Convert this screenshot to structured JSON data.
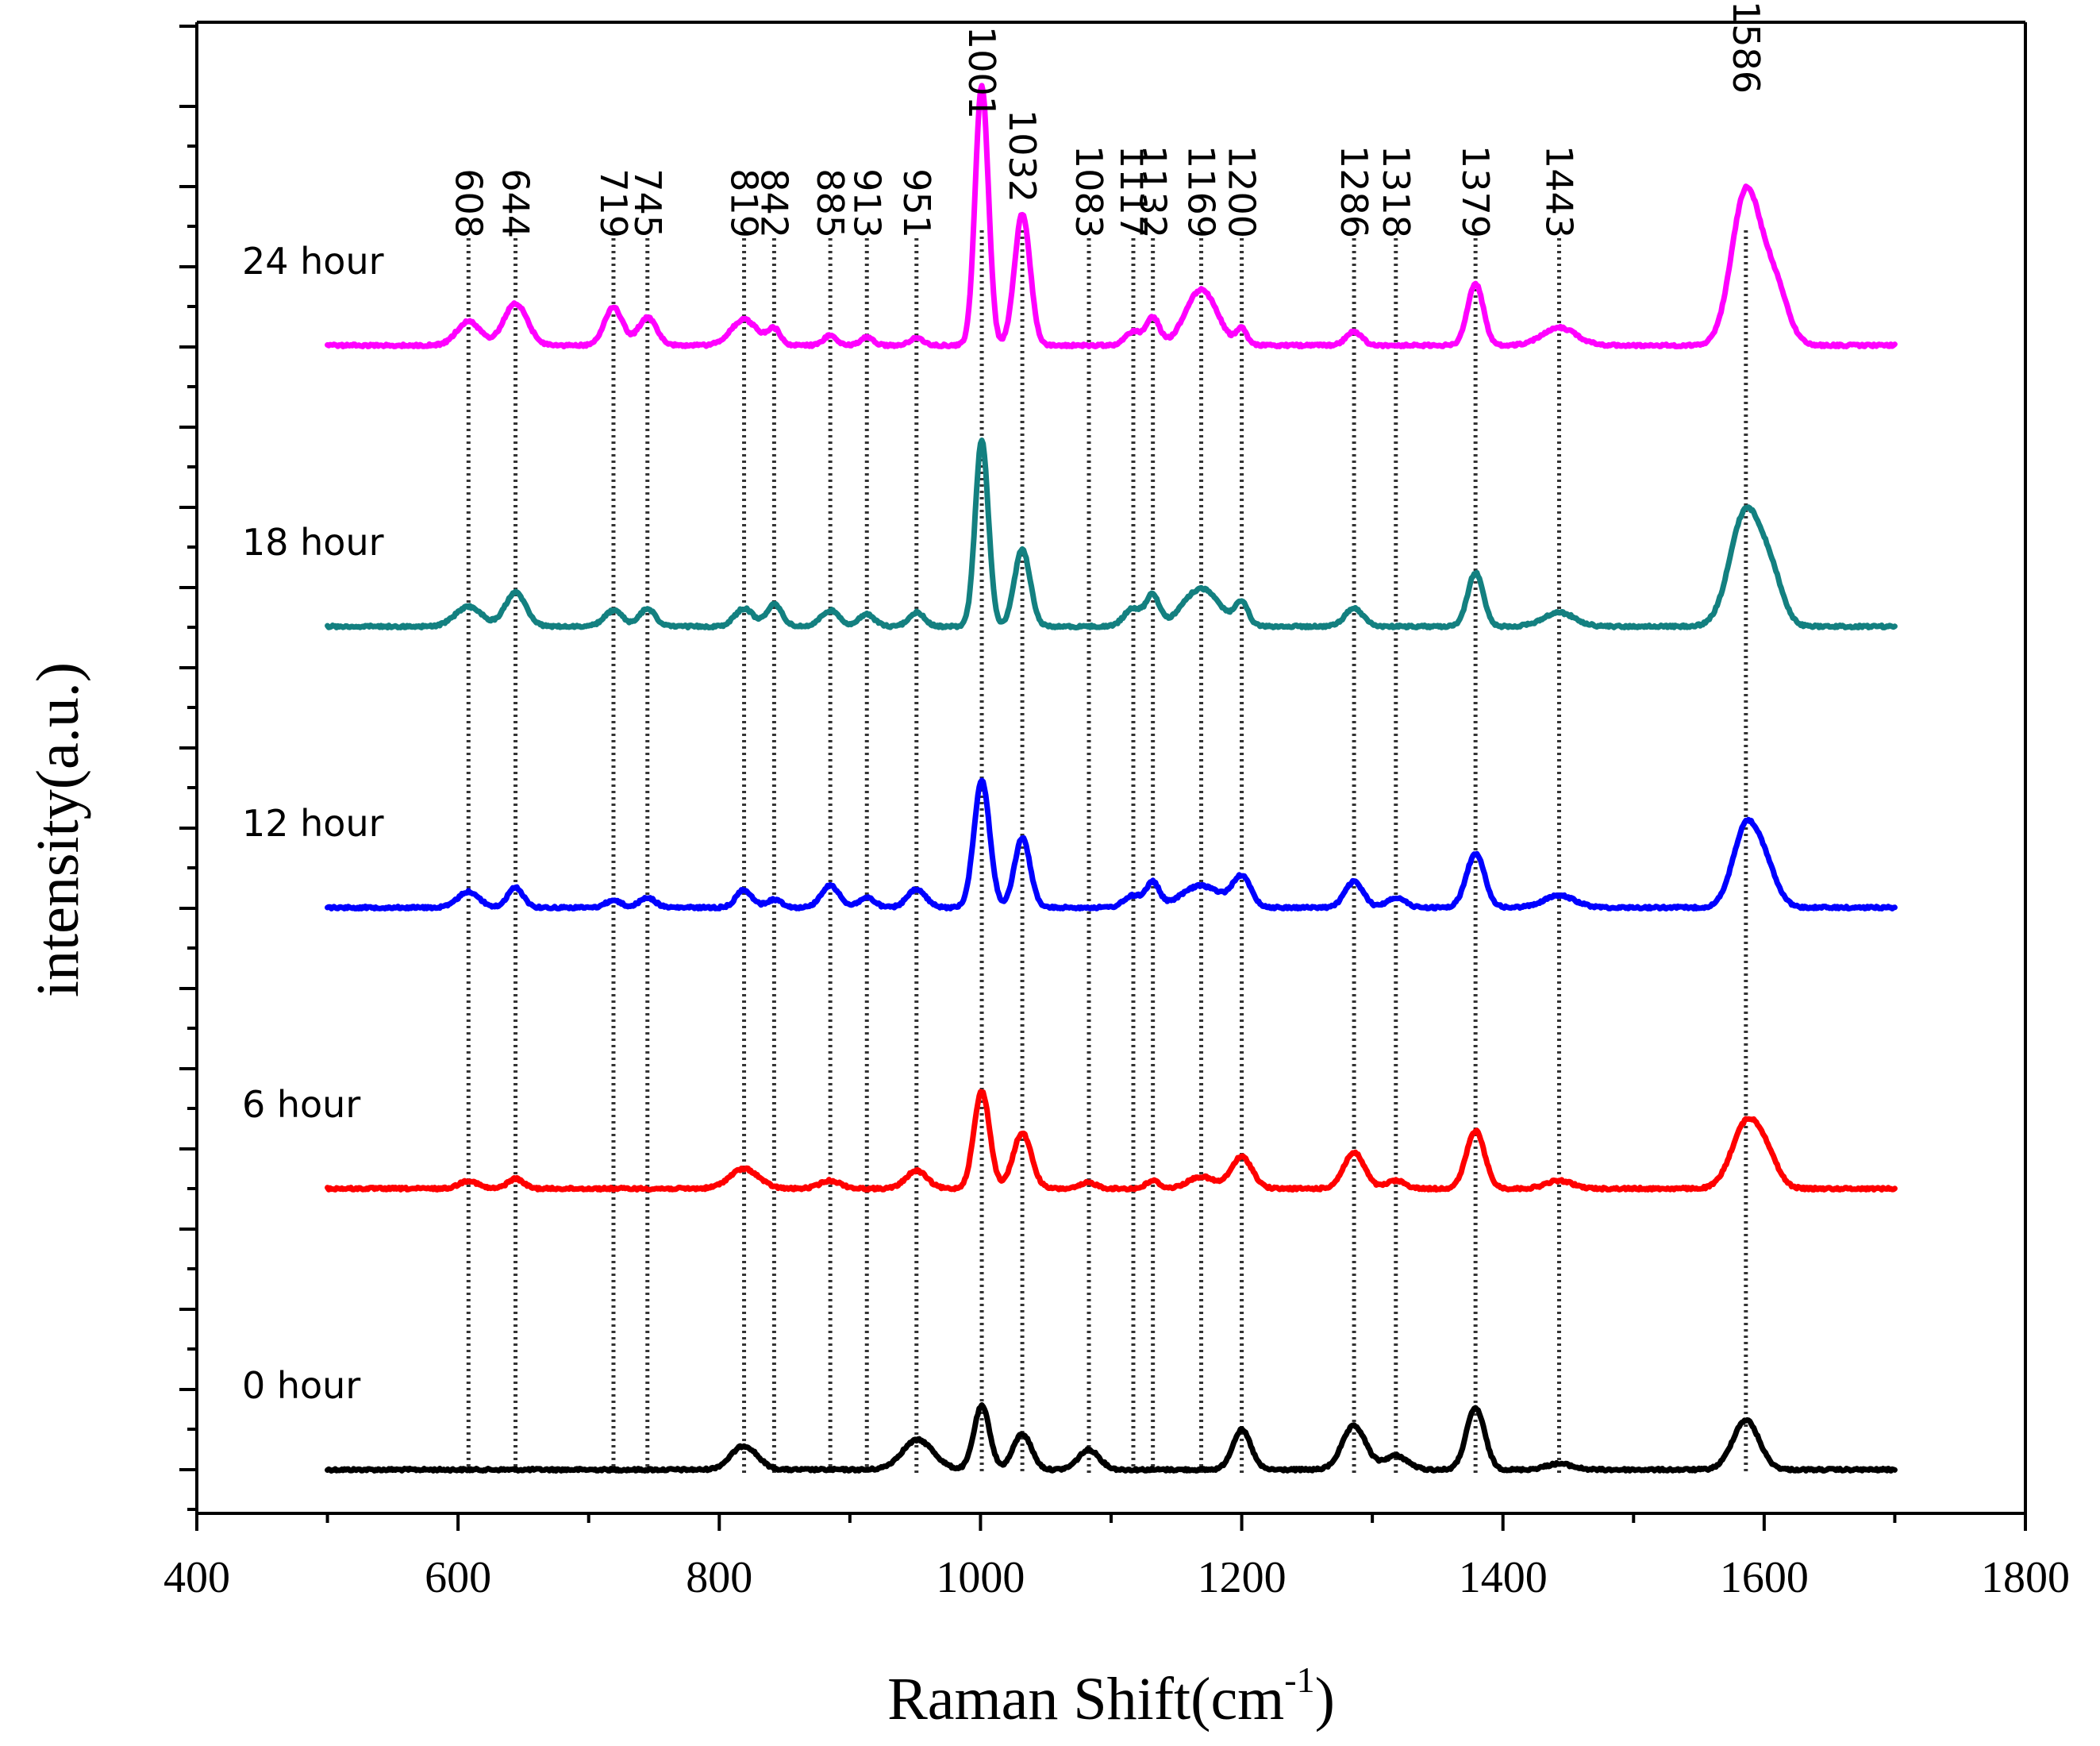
{
  "chart_data": {
    "type": "line",
    "title": "",
    "xlabel": "Raman Shift(cm",
    "xlabel_sup": "-1",
    "xlabel_close": ")",
    "ylabel": "intensity(a.u.)",
    "xlim": [
      400,
      1800
    ],
    "xticks": [
      "400",
      "600",
      "800",
      "1000",
      "1200",
      "1400",
      "1600",
      "1800"
    ],
    "data_range": [
      500,
      1700
    ],
    "peaks": [
      "608",
      "644",
      "719",
      "745",
      "819",
      "842",
      "885",
      "913",
      "951",
      "1001",
      "1032",
      "1083",
      "1117",
      "1132",
      "1169",
      "1200",
      "1286",
      "1318",
      "1379",
      "1443",
      "1586"
    ],
    "series": [
      {
        "name": "0 hour",
        "color": "#000000",
        "peaks": [
          {
            "x": 819,
            "h": 0.6,
            "w": 10
          },
          {
            "x": 952,
            "h": 0.75,
            "w": 12
          },
          {
            "x": 1001,
            "h": 1.6,
            "w": 6
          },
          {
            "x": 1032,
            "h": 0.9,
            "w": 7
          },
          {
            "x": 1083,
            "h": 0.5,
            "w": 8
          },
          {
            "x": 1200,
            "h": 1.0,
            "w": 7
          },
          {
            "x": 1286,
            "h": 1.1,
            "w": 9
          },
          {
            "x": 1318,
            "h": 0.35,
            "w": 9
          },
          {
            "x": 1379,
            "h": 1.55,
            "w": 7
          },
          {
            "x": 1443,
            "h": 0.15,
            "w": 10
          },
          {
            "x": 1586,
            "h": 1.25,
            "w": 10
          }
        ]
      },
      {
        "name": "6 hour",
        "color": "#ff0000",
        "peaks": [
          {
            "x": 608,
            "h": 0.2,
            "w": 7
          },
          {
            "x": 644,
            "h": 0.25,
            "w": 6
          },
          {
            "x": 819,
            "h": 0.5,
            "w": 11
          },
          {
            "x": 885,
            "h": 0.2,
            "w": 8
          },
          {
            "x": 951,
            "h": 0.45,
            "w": 8
          },
          {
            "x": 1001,
            "h": 2.45,
            "w": 6
          },
          {
            "x": 1032,
            "h": 1.4,
            "w": 7
          },
          {
            "x": 1083,
            "h": 0.15,
            "w": 6
          },
          {
            "x": 1132,
            "h": 0.2,
            "w": 5
          },
          {
            "x": 1169,
            "h": 0.3,
            "w": 10
          },
          {
            "x": 1200,
            "h": 0.8,
            "w": 8
          },
          {
            "x": 1286,
            "h": 0.9,
            "w": 8
          },
          {
            "x": 1318,
            "h": 0.2,
            "w": 7
          },
          {
            "x": 1379,
            "h": 1.45,
            "w": 7
          },
          {
            "x": 1443,
            "h": 0.2,
            "w": 10
          },
          {
            "x": 1586,
            "h": 1.6,
            "w": 11
          },
          {
            "x": 1602,
            "h": 0.65,
            "w": 9
          }
        ]
      },
      {
        "name": "12 hour",
        "color": "#0000ff",
        "peaks": [
          {
            "x": 608,
            "h": 0.4,
            "w": 8
          },
          {
            "x": 644,
            "h": 0.5,
            "w": 6
          },
          {
            "x": 719,
            "h": 0.18,
            "w": 6
          },
          {
            "x": 745,
            "h": 0.25,
            "w": 6
          },
          {
            "x": 819,
            "h": 0.45,
            "w": 6
          },
          {
            "x": 842,
            "h": 0.2,
            "w": 6
          },
          {
            "x": 885,
            "h": 0.55,
            "w": 7
          },
          {
            "x": 913,
            "h": 0.25,
            "w": 6
          },
          {
            "x": 951,
            "h": 0.45,
            "w": 7
          },
          {
            "x": 1001,
            "h": 3.2,
            "w": 6
          },
          {
            "x": 1032,
            "h": 1.75,
            "w": 6
          },
          {
            "x": 1117,
            "h": 0.3,
            "w": 7
          },
          {
            "x": 1132,
            "h": 0.6,
            "w": 5
          },
          {
            "x": 1169,
            "h": 0.55,
            "w": 15
          },
          {
            "x": 1200,
            "h": 0.75,
            "w": 7
          },
          {
            "x": 1286,
            "h": 0.65,
            "w": 7
          },
          {
            "x": 1318,
            "h": 0.25,
            "w": 7
          },
          {
            "x": 1379,
            "h": 1.35,
            "w": 7
          },
          {
            "x": 1443,
            "h": 0.3,
            "w": 12
          },
          {
            "x": 1586,
            "h": 2.0,
            "w": 10
          },
          {
            "x": 1602,
            "h": 0.8,
            "w": 9
          }
        ]
      },
      {
        "name": "18 hour",
        "color": "#138080",
        "peaks": [
          {
            "x": 608,
            "h": 0.5,
            "w": 10
          },
          {
            "x": 644,
            "h": 0.85,
            "w": 8
          },
          {
            "x": 719,
            "h": 0.4,
            "w": 7
          },
          {
            "x": 745,
            "h": 0.45,
            "w": 6
          },
          {
            "x": 819,
            "h": 0.45,
            "w": 7
          },
          {
            "x": 842,
            "h": 0.55,
            "w": 6
          },
          {
            "x": 885,
            "h": 0.4,
            "w": 7
          },
          {
            "x": 913,
            "h": 0.3,
            "w": 6
          },
          {
            "x": 951,
            "h": 0.35,
            "w": 6
          },
          {
            "x": 1001,
            "h": 4.7,
            "w": 5
          },
          {
            "x": 1032,
            "h": 1.95,
            "w": 6
          },
          {
            "x": 1117,
            "h": 0.45,
            "w": 7
          },
          {
            "x": 1132,
            "h": 0.75,
            "w": 5
          },
          {
            "x": 1169,
            "h": 0.95,
            "w": 14
          },
          {
            "x": 1200,
            "h": 0.55,
            "w": 5
          },
          {
            "x": 1286,
            "h": 0.45,
            "w": 7
          },
          {
            "x": 1379,
            "h": 1.35,
            "w": 6
          },
          {
            "x": 1443,
            "h": 0.35,
            "w": 12
          },
          {
            "x": 1586,
            "h": 2.9,
            "w": 12
          },
          {
            "x": 1606,
            "h": 1.0,
            "w": 9
          }
        ]
      },
      {
        "name": "24 hour",
        "color": "#ff00ff",
        "peaks": [
          {
            "x": 608,
            "h": 0.6,
            "w": 9
          },
          {
            "x": 644,
            "h": 1.05,
            "w": 9
          },
          {
            "x": 719,
            "h": 0.95,
            "w": 7
          },
          {
            "x": 745,
            "h": 0.7,
            "w": 7
          },
          {
            "x": 819,
            "h": 0.65,
            "w": 10
          },
          {
            "x": 842,
            "h": 0.4,
            "w": 5
          },
          {
            "x": 885,
            "h": 0.25,
            "w": 5
          },
          {
            "x": 913,
            "h": 0.2,
            "w": 5
          },
          {
            "x": 951,
            "h": 0.2,
            "w": 5
          },
          {
            "x": 1001,
            "h": 6.55,
            "w": 5
          },
          {
            "x": 1032,
            "h": 3.3,
            "w": 6
          },
          {
            "x": 1117,
            "h": 0.35,
            "w": 6
          },
          {
            "x": 1132,
            "h": 0.7,
            "w": 5
          },
          {
            "x": 1169,
            "h": 1.4,
            "w": 12
          },
          {
            "x": 1200,
            "h": 0.4,
            "w": 4
          },
          {
            "x": 1286,
            "h": 0.35,
            "w": 6
          },
          {
            "x": 1379,
            "h": 1.55,
            "w": 6
          },
          {
            "x": 1443,
            "h": 0.45,
            "w": 13
          },
          {
            "x": 1586,
            "h": 3.85,
            "w": 11
          },
          {
            "x": 1608,
            "h": 1.45,
            "w": 10
          }
        ]
      }
    ]
  }
}
